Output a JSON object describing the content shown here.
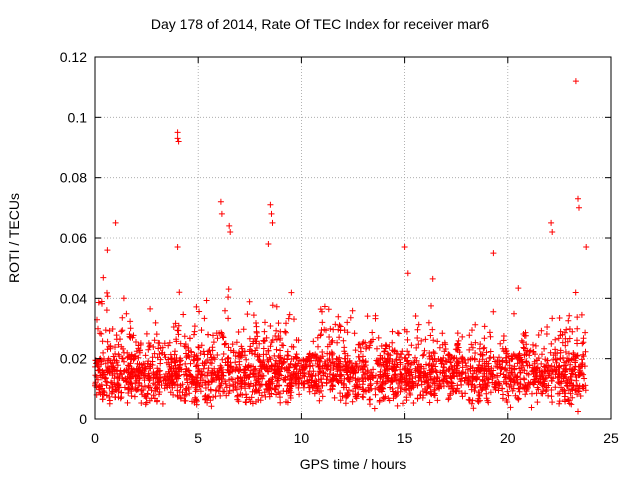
{
  "chart_data": {
    "type": "scatter",
    "title": "Day 178 of 2014, Rate Of TEC Index for receiver mar6",
    "xlabel": "GPS time / hours",
    "ylabel": "ROTI / TECUs",
    "xlim": [
      0,
      25
    ],
    "ylim": [
      0,
      0.12
    ],
    "xticks": [
      0,
      5,
      10,
      15,
      20,
      25
    ],
    "yticks": [
      0,
      0.02,
      0.04,
      0.06,
      0.08,
      0.1,
      0.12
    ],
    "ytick_labels": [
      "0",
      "0.02",
      "0.04",
      "0.06",
      "0.08",
      "0.1",
      "0.12"
    ],
    "grid": true,
    "marker": "+",
    "color": "#ff0000",
    "x_range_of_data": [
      0,
      23.8
    ],
    "typical_band": [
      0.005,
      0.03
    ],
    "notable_points": [
      {
        "x": 4.0,
        "y": 0.095
      },
      {
        "x": 4.0,
        "y": 0.093
      },
      {
        "x": 4.05,
        "y": 0.092
      },
      {
        "x": 6.1,
        "y": 0.072
      },
      {
        "x": 6.15,
        "y": 0.068
      },
      {
        "x": 8.5,
        "y": 0.071
      },
      {
        "x": 8.55,
        "y": 0.068
      },
      {
        "x": 8.6,
        "y": 0.065
      },
      {
        "x": 1.0,
        "y": 0.065
      },
      {
        "x": 23.3,
        "y": 0.112
      },
      {
        "x": 23.4,
        "y": 0.073
      },
      {
        "x": 23.45,
        "y": 0.07
      },
      {
        "x": 22.1,
        "y": 0.065
      },
      {
        "x": 22.15,
        "y": 0.062
      },
      {
        "x": 6.5,
        "y": 0.064
      },
      {
        "x": 6.55,
        "y": 0.062
      },
      {
        "x": 4.0,
        "y": 0.057
      },
      {
        "x": 15.0,
        "y": 0.057
      },
      {
        "x": 19.3,
        "y": 0.055
      },
      {
        "x": 23.8,
        "y": 0.057
      },
      {
        "x": 0.6,
        "y": 0.056
      },
      {
        "x": 8.4,
        "y": 0.058
      }
    ],
    "bumps": [
      {
        "x": 0.5,
        "amp": 0.022,
        "w": 0.35
      },
      {
        "x": 1.6,
        "amp": 0.015,
        "w": 0.3
      },
      {
        "x": 2.8,
        "amp": 0.016,
        "w": 0.3
      },
      {
        "x": 4.0,
        "amp": 0.02,
        "w": 0.3
      },
      {
        "x": 5.2,
        "amp": 0.022,
        "w": 0.4
      },
      {
        "x": 6.5,
        "amp": 0.024,
        "w": 0.35
      },
      {
        "x": 7.5,
        "amp": 0.017,
        "w": 0.3
      },
      {
        "x": 8.6,
        "amp": 0.024,
        "w": 0.35
      },
      {
        "x": 9.5,
        "amp": 0.015,
        "w": 0.3
      },
      {
        "x": 11.2,
        "amp": 0.015,
        "w": 0.4
      },
      {
        "x": 12.3,
        "amp": 0.018,
        "w": 0.3
      },
      {
        "x": 13.5,
        "amp": 0.016,
        "w": 0.35
      },
      {
        "x": 15.0,
        "amp": 0.025,
        "w": 0.4
      },
      {
        "x": 16.3,
        "amp": 0.02,
        "w": 0.35
      },
      {
        "x": 18.1,
        "amp": 0.026,
        "w": 0.5
      },
      {
        "x": 19.2,
        "amp": 0.018,
        "w": 0.3
      },
      {
        "x": 20.6,
        "amp": 0.02,
        "w": 0.35
      },
      {
        "x": 21.6,
        "amp": 0.017,
        "w": 0.3
      },
      {
        "x": 22.4,
        "amp": 0.024,
        "w": 0.35
      },
      {
        "x": 23.3,
        "amp": 0.02,
        "w": 0.3
      }
    ],
    "bulk_point_count": 2600,
    "random_seed": 178
  }
}
